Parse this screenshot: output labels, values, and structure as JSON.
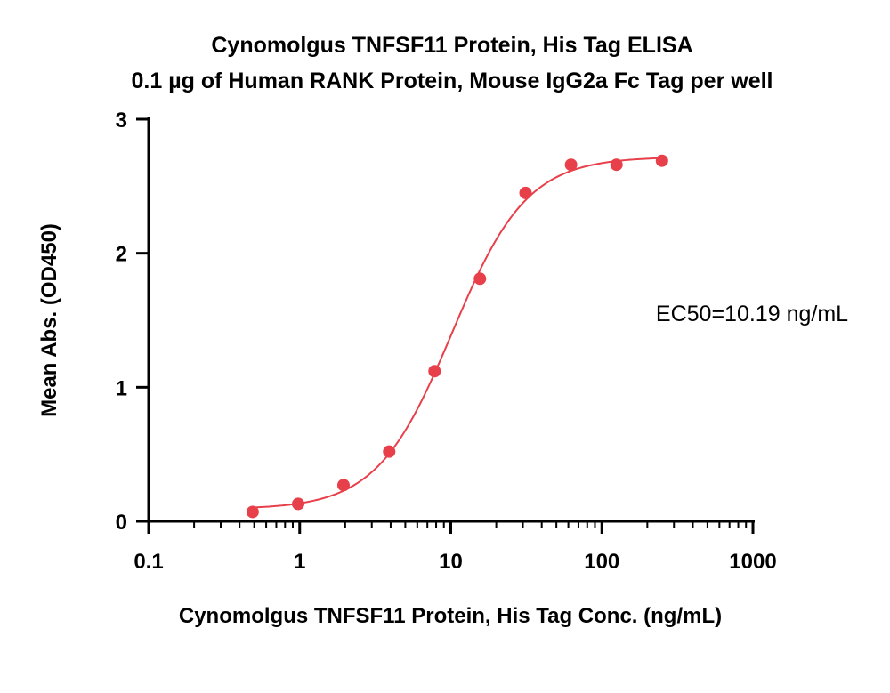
{
  "chart_data": {
    "type": "scatter",
    "title": "Cynomolgus TNFSF11 Protein, His Tag ELISA",
    "subtitle": "0.1 µg of Human RANK Protein, Mouse IgG2a Fc Tag per well",
    "xlabel": "Cynomolgus TNFSF11 Protein, His Tag Conc. (ng/mL)",
    "ylabel": "Mean Abs. (OD450)",
    "x_scale": "log",
    "xlim": [
      0.1,
      1000
    ],
    "ylim": [
      0,
      3
    ],
    "x_ticks": [
      0.1,
      1,
      10,
      100,
      1000
    ],
    "x_tick_labels": [
      "0.1",
      "1",
      "10",
      "100",
      "1000"
    ],
    "y_ticks": [
      0,
      1,
      2,
      3
    ],
    "y_tick_labels": [
      "0",
      "1",
      "2",
      "3"
    ],
    "grid": false,
    "color": "#e8404a",
    "series": [
      {
        "x": [
          0.488,
          0.977,
          1.95,
          3.91,
          7.81,
          15.6,
          31.25,
          62.5,
          125,
          250
        ],
        "y": [
          0.07,
          0.13,
          0.27,
          0.52,
          1.12,
          1.81,
          2.45,
          2.66,
          2.66,
          2.69
        ]
      }
    ],
    "fit": {
      "bottom": 0.09,
      "top": 2.72,
      "ec50": 10.19,
      "hill": 1.75
    },
    "annotation": "EC50=10.19 ng/mL"
  }
}
